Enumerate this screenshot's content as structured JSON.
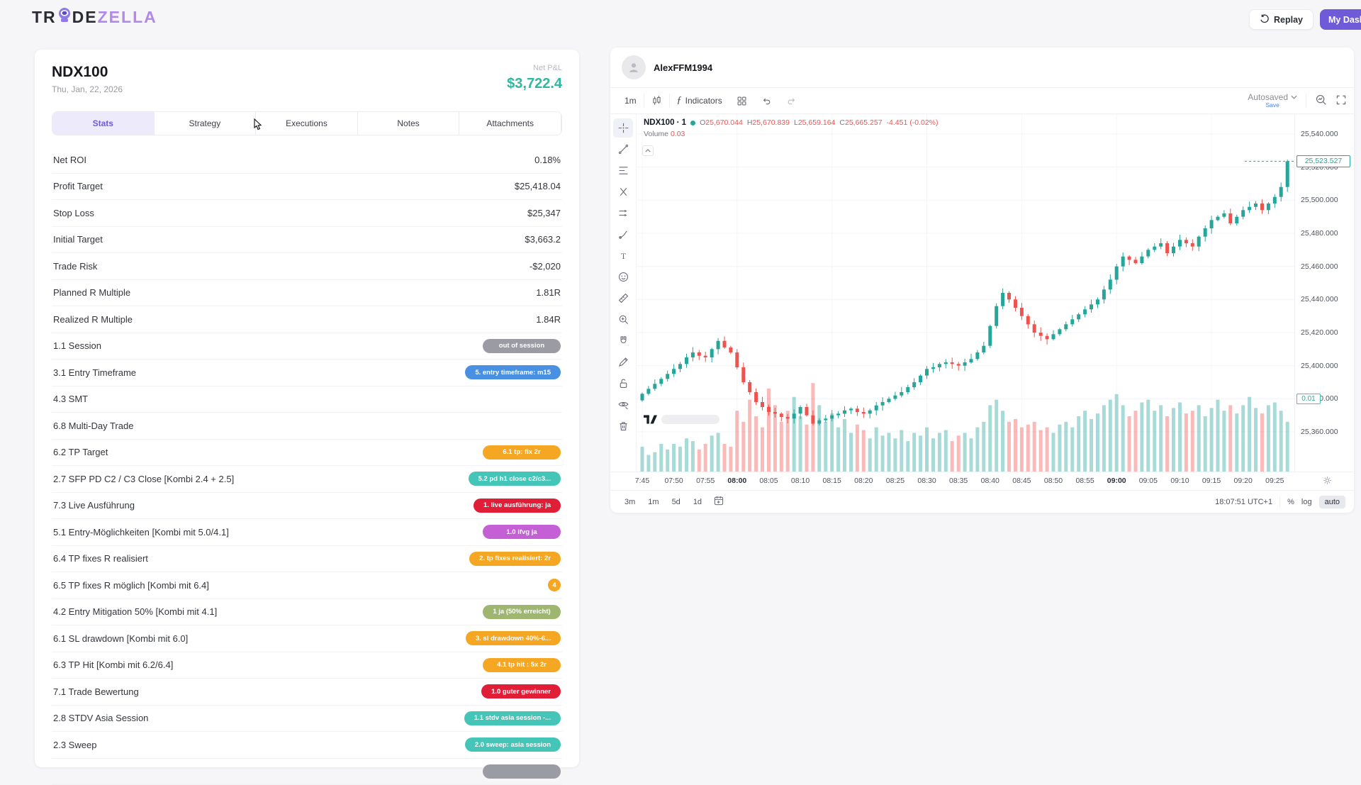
{
  "header": {
    "logo_part1": "TR",
    "logo_part2": "DE",
    "logo_part3": "ZELLA"
  },
  "topbar": {
    "replay_label": "Replay",
    "my_dashboard_label": "My Dashboard"
  },
  "trade": {
    "symbol": "NDX100",
    "date": "Thu, Jan, 22, 2026",
    "net_pnl_label": "Net P&L",
    "net_pnl": "$3,722.4"
  },
  "tabs": [
    {
      "label": "Stats",
      "active": true
    },
    {
      "label": "Strategy",
      "active": false
    },
    {
      "label": "Executions",
      "active": false
    },
    {
      "label": "Notes",
      "active": false
    },
    {
      "label": "Attachments",
      "active": false
    }
  ],
  "stats_rows": [
    {
      "label": "Net ROI",
      "value": "0.18%"
    },
    {
      "label": "Profit Target",
      "value": "$25,418.04"
    },
    {
      "label": "Stop Loss",
      "value": "$25,347"
    },
    {
      "label": "Initial Target",
      "value": "$3,663.2"
    },
    {
      "label": "Trade Risk",
      "value": "-$2,020"
    },
    {
      "label": "Planned R Multiple",
      "value": "1.81R"
    },
    {
      "label": "Realized R Multiple",
      "value": "1.84R"
    },
    {
      "label": "1.1 Session",
      "badge": "out of session",
      "color": "#9b9ba3"
    },
    {
      "label": "3.1 Entry Timeframe",
      "badge": "5. entry timeframe: m15",
      "color": "#4a90e2"
    },
    {
      "label": "4.3 SMT"
    },
    {
      "label": "6.8 Multi-Day Trade"
    },
    {
      "label": "6.2 TP Target",
      "badge": "6.1 tp: fix 2r",
      "color": "#f5a623"
    },
    {
      "label": "2.7 SFP PD C2 / C3 Close [Kombi 2.4 + 2.5]",
      "badge": "5.2 pd h1 close c2/c3...",
      "color": "#45c4b8"
    },
    {
      "label": "7.3 Live Ausführung",
      "badge": "1. live ausführung: ja",
      "color": "#e01e37"
    },
    {
      "label": "5.1 Entry-Möglichkeiten [Kombi mit 5.0/4.1]",
      "badge": "1.0 ifvg ja",
      "color": "#c45fd6"
    },
    {
      "label": "6.4 TP fixes R realisiert",
      "badge": "2. tp fixes realisiert: 2r",
      "color": "#f5a623"
    },
    {
      "label": "6.5 TP fixes R möglich [Kombi mit 6.4]",
      "badge": "4",
      "color": "#f5a623",
      "circle": true
    },
    {
      "label": "4.2 Entry Mitigation 50% [Kombi mit 4.1]",
      "badge": "1 ja (50% erreicht)",
      "color": "#9fb670"
    },
    {
      "label": "6.1 SL drawdown [Kombi mit 6.0]",
      "badge": "3. sl drawdown 40%-6...",
      "color": "#f5a623"
    },
    {
      "label": "6.3 TP Hit [Kombi mit 6.2/6.4]",
      "badge": "4.1 tp hit : 5x 2r",
      "color": "#f5a623"
    },
    {
      "label": "7.1 Trade Bewertung",
      "badge": "1.0 guter gewinner",
      "color": "#e01e37"
    },
    {
      "label": "2.8 STDV Asia Session",
      "badge": "1.1 stdv asia session -...",
      "color": "#45c4b8"
    },
    {
      "label": "2.3 Sweep",
      "badge": "2.0 sweep: asia session",
      "color": "#45c4b8"
    },
    {
      "label": "",
      "badge": "",
      "color": "#9b9ba3"
    }
  ],
  "chart": {
    "user": "AlexFFM1994",
    "toolbar": {
      "timeframe": "1m",
      "indicators_label": "Indicators",
      "autosaved_label": "Autosaved",
      "save_label": "Save"
    },
    "legend": {
      "symbol": "NDX100 · 1",
      "o_label": "O",
      "o": "25,670.044",
      "h_label": "H",
      "h": "25,670.839",
      "l_label": "L",
      "l": "25,659.164",
      "c_label": "C",
      "c": "25,665.257",
      "change": "-4.451 (-0.02%)",
      "volume_label": "Volume",
      "volume_value": "0.03"
    },
    "tools": [
      "crosshair",
      "trend-line",
      "fib-retracement",
      "pitchfork",
      "forecast",
      "brush",
      "text",
      "emoji",
      "ruler",
      "zoom-in",
      "magnet",
      "draw",
      "lock",
      "eye",
      "trash"
    ],
    "price_tag": "25,523.527",
    "volume_tag": "0.01",
    "bottom": {
      "ranges": [
        "3m",
        "1m",
        "5d",
        "1d"
      ],
      "clock": "18:07:51 UTC+1",
      "percent_label": "%",
      "log_label": "log",
      "auto_label": "auto"
    },
    "colors": {
      "up": "#26a69a",
      "down": "#ef5350",
      "accent": "#6f5bd8",
      "pnl_green": "#2eb89e"
    }
  },
  "chart_data": {
    "type": "candlestick+volume",
    "title": "NDX100 1-minute",
    "start_time": "07:45",
    "interval_minutes": 1,
    "x_labels": [
      "7:45",
      "07:50",
      "07:55",
      "08:00",
      "08:05",
      "08:10",
      "08:15",
      "08:20",
      "08:25",
      "08:30",
      "08:35",
      "08:40",
      "08:45",
      "08:50",
      "08:55",
      "09:00",
      "09:05",
      "09:10",
      "09:15",
      "09:20",
      "09:25"
    ],
    "x_labels_bold": [
      "08:00",
      "09:00"
    ],
    "y_ticks": [
      "25,540.000",
      "25,520.000",
      "25,500.000",
      "25,480.000",
      "25,460.000",
      "25,440.000",
      "25,420.000",
      "25,400.000",
      "25,380.000",
      "25,360.000"
    ],
    "ylim": [
      25336,
      25552
    ],
    "current_price": 25523.527,
    "closes": [
      25383,
      25386,
      25389,
      25392,
      25395,
      25398,
      25401,
      25405,
      25408,
      25406,
      25405,
      25410,
      25415,
      25411,
      25408,
      25399,
      25390,
      25384,
      25378,
      25375,
      25372,
      25371,
      25369,
      25368,
      25371,
      25375,
      25370,
      25365,
      25367,
      25368,
      25370,
      25371,
      25373,
      25374,
      25372,
      25371,
      25373,
      25376,
      25378,
      25380,
      25382,
      25384,
      25387,
      25390,
      25394,
      25398,
      25399,
      25401,
      25402,
      25401,
      25400,
      25402,
      25404,
      25408,
      25412,
      25424,
      25436,
      25444,
      25440,
      25435,
      25430,
      25425,
      25420,
      25418,
      25416,
      25419,
      25422,
      25425,
      25428,
      25431,
      25434,
      25437,
      25440,
      25446,
      25452,
      25460,
      25466,
      25464,
      25462,
      25466,
      25470,
      25472,
      25474,
      25468,
      25472,
      25476,
      25474,
      25472,
      25478,
      25483,
      25488,
      25490,
      25492,
      25486,
      25490,
      25494,
      25496,
      25498,
      25494,
      25498,
      25502,
      25508,
      25523.5
    ],
    "volumes": [
      0.45,
      0.3,
      0.35,
      0.5,
      0.4,
      0.5,
      0.45,
      0.6,
      0.55,
      0.4,
      0.5,
      0.65,
      0.7,
      0.5,
      0.45,
      1.1,
      0.9,
      1.3,
      1.0,
      0.8,
      1.5,
      1.2,
      0.9,
      1.1,
      1.35,
      1.0,
      0.85,
      1.6,
      1.2,
      0.9,
      1.05,
      0.8,
      0.95,
      0.7,
      0.85,
      0.75,
      0.6,
      0.8,
      0.65,
      0.7,
      0.6,
      0.75,
      0.55,
      0.7,
      0.65,
      0.8,
      0.6,
      0.7,
      0.75,
      0.55,
      0.65,
      0.7,
      0.6,
      0.8,
      0.9,
      1.2,
      1.3,
      1.1,
      0.9,
      0.95,
      0.8,
      0.85,
      0.9,
      0.75,
      0.8,
      0.7,
      0.85,
      0.9,
      0.8,
      1.0,
      1.1,
      0.95,
      1.05,
      1.2,
      1.3,
      1.4,
      1.2,
      1.0,
      1.1,
      1.25,
      1.3,
      1.1,
      1.2,
      1.0,
      1.15,
      1.25,
      1.05,
      1.1,
      1.2,
      1.0,
      1.15,
      1.3,
      1.1,
      1.2,
      1.05,
      1.2,
      1.35,
      1.15,
      1.05,
      1.2,
      1.25,
      1.1,
      0.9
    ]
  }
}
